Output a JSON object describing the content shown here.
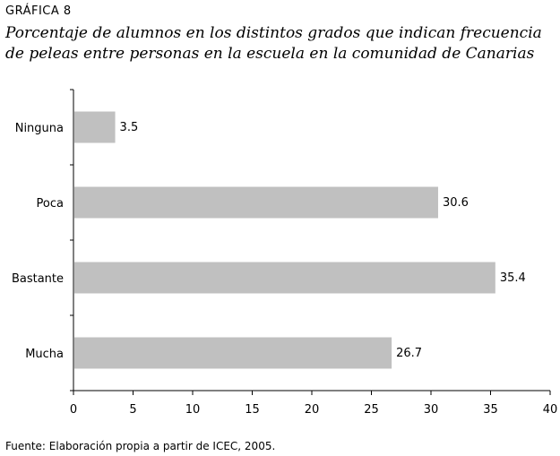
{
  "header": {
    "label": "GRÁFICA 8",
    "title_line1": "Porcentaje de alumnos en los distintos grados que indican frecuencia",
    "title_line2": "de peleas entre personas en la escuela en la comunidad de Canarias"
  },
  "footer": {
    "source": "Fuente: Elaboración propia a partir de ICEC, 2005."
  },
  "chart_data": {
    "type": "bar",
    "orientation": "horizontal",
    "categories": [
      "Ninguna",
      "Poca",
      "Bastante",
      "Mucha"
    ],
    "values": [
      3.5,
      30.6,
      35.4,
      26.7
    ],
    "value_labels": [
      "3.5",
      "30.6",
      "35.4",
      "26.7"
    ],
    "xlim": [
      0,
      40
    ],
    "xticks": [
      0,
      5,
      10,
      15,
      20,
      25,
      30,
      35,
      40
    ],
    "xtick_labels": [
      "0",
      "5",
      "10",
      "15",
      "20",
      "25",
      "30",
      "35",
      "40"
    ],
    "bar_color": "#c0c0c0",
    "grid": false,
    "legend": "none"
  }
}
